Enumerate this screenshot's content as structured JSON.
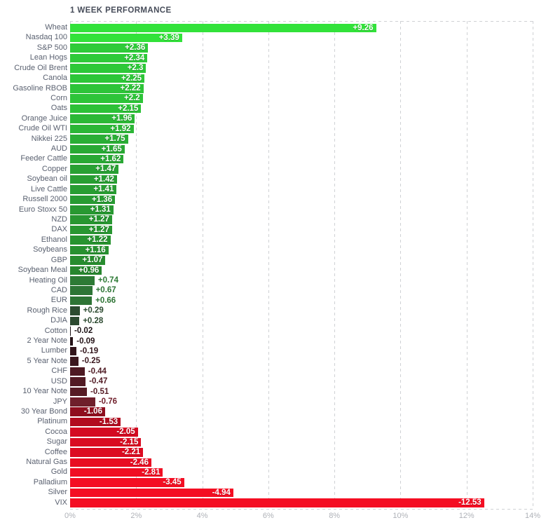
{
  "title": "1 WEEK PERFORMANCE",
  "chart_data": {
    "type": "bar",
    "orientation": "horizontal",
    "title": "1 WEEK PERFORMANCE",
    "xlabel": "",
    "ylabel": "",
    "bar_length_encodes": "absolute value of weekly percent change",
    "legend_position": "none",
    "grid": "dashed vertical gridlines at each tick; dashed top and bottom plot borders",
    "x_axis": {
      "min": 0,
      "max": 14,
      "tick_step": 2,
      "tick_labels": [
        "0%",
        "2%",
        "4%",
        "6%",
        "8%",
        "10%",
        "12%",
        "14%"
      ]
    },
    "items": [
      {
        "label": "Wheat",
        "value": 9.26,
        "display": "+9.26"
      },
      {
        "label": "Nasdaq 100",
        "value": 3.39,
        "display": "+3.39"
      },
      {
        "label": "S&P 500",
        "value": 2.36,
        "display": "+2.36"
      },
      {
        "label": "Lean Hogs",
        "value": 2.34,
        "display": "+2.34"
      },
      {
        "label": "Crude Oil Brent",
        "value": 2.3,
        "display": "+2.3"
      },
      {
        "label": "Canola",
        "value": 2.25,
        "display": "+2.25"
      },
      {
        "label": "Gasoline RBOB",
        "value": 2.22,
        "display": "+2.22"
      },
      {
        "label": "Corn",
        "value": 2.2,
        "display": "+2.2"
      },
      {
        "label": "Oats",
        "value": 2.15,
        "display": "+2.15"
      },
      {
        "label": "Orange Juice",
        "value": 1.96,
        "display": "+1.96"
      },
      {
        "label": "Crude Oil WTI",
        "value": 1.92,
        "display": "+1.92"
      },
      {
        "label": "Nikkei 225",
        "value": 1.75,
        "display": "+1.75"
      },
      {
        "label": "AUD",
        "value": 1.65,
        "display": "+1.65"
      },
      {
        "label": "Feeder Cattle",
        "value": 1.62,
        "display": "+1.62"
      },
      {
        "label": "Copper",
        "value": 1.47,
        "display": "+1.47"
      },
      {
        "label": "Soybean oil",
        "value": 1.42,
        "display": "+1.42"
      },
      {
        "label": "Live Cattle",
        "value": 1.41,
        "display": "+1.41"
      },
      {
        "label": "Russell 2000",
        "value": 1.36,
        "display": "+1.36"
      },
      {
        "label": "Euro Stoxx 50",
        "value": 1.31,
        "display": "+1.31"
      },
      {
        "label": "NZD",
        "value": 1.27,
        "display": "+1.27"
      },
      {
        "label": "DAX",
        "value": 1.27,
        "display": "+1.27"
      },
      {
        "label": "Ethanol",
        "value": 1.22,
        "display": "+1.22"
      },
      {
        "label": "Soybeans",
        "value": 1.16,
        "display": "+1.16"
      },
      {
        "label": "GBP",
        "value": 1.07,
        "display": "+1.07"
      },
      {
        "label": "Soybean Meal",
        "value": 0.96,
        "display": "+0.96"
      },
      {
        "label": "Heating Oil",
        "value": 0.74,
        "display": "+0.74"
      },
      {
        "label": "CAD",
        "value": 0.67,
        "display": "+0.67"
      },
      {
        "label": "EUR",
        "value": 0.66,
        "display": "+0.66"
      },
      {
        "label": "Rough Rice",
        "value": 0.29,
        "display": "+0.29"
      },
      {
        "label": "DJIA",
        "value": 0.28,
        "display": "+0.28"
      },
      {
        "label": "Cotton",
        "value": -0.02,
        "display": "-0.02"
      },
      {
        "label": "2 Year Note",
        "value": -0.09,
        "display": "-0.09"
      },
      {
        "label": "Lumber",
        "value": -0.19,
        "display": "-0.19"
      },
      {
        "label": "5 Year Note",
        "value": -0.25,
        "display": "-0.25"
      },
      {
        "label": "CHF",
        "value": -0.44,
        "display": "-0.44"
      },
      {
        "label": "USD",
        "value": -0.47,
        "display": "-0.47"
      },
      {
        "label": "10 Year Note",
        "value": -0.51,
        "display": "-0.51"
      },
      {
        "label": "JPY",
        "value": -0.76,
        "display": "-0.76"
      },
      {
        "label": "30 Year Bond",
        "value": -1.06,
        "display": "-1.06"
      },
      {
        "label": "Platinum",
        "value": -1.53,
        "display": "-1.53"
      },
      {
        "label": "Cocoa",
        "value": -2.05,
        "display": "-2.05"
      },
      {
        "label": "Sugar",
        "value": -2.15,
        "display": "-2.15"
      },
      {
        "label": "Coffee",
        "value": -2.21,
        "display": "-2.21"
      },
      {
        "label": "Natural Gas",
        "value": -2.46,
        "display": "-2.46"
      },
      {
        "label": "Gold",
        "value": -2.81,
        "display": "-2.81"
      },
      {
        "label": "Palladium",
        "value": -3.45,
        "display": "-3.45"
      },
      {
        "label": "Silver",
        "value": -4.94,
        "display": "-4.94"
      },
      {
        "label": "VIX",
        "value": -12.53,
        "display": "-12.53"
      }
    ],
    "colors": {
      "positive_stops": [
        [
          0,
          "#1d251e"
        ],
        [
          0.28,
          "#2c4a30"
        ],
        [
          0.7,
          "#2e7836"
        ],
        [
          1.0,
          "#27882e"
        ],
        [
          1.5,
          "#28a233"
        ],
        [
          2.0,
          "#2bba36"
        ],
        [
          2.4,
          "#2ecd39"
        ],
        [
          3.39,
          "#32e23a"
        ]
      ],
      "negative_stops": [
        [
          0,
          "#1a1315"
        ],
        [
          0.25,
          "#3a161d"
        ],
        [
          0.51,
          "#561c25"
        ],
        [
          0.8,
          "#731f2c"
        ],
        [
          1.06,
          "#8f0e1e"
        ],
        [
          1.53,
          "#b20b1e"
        ],
        [
          2.05,
          "#d40a21"
        ],
        [
          2.5,
          "#ea0d22"
        ],
        [
          3.0,
          "#f40e23"
        ]
      ],
      "gridline": "#cfd1d4",
      "axis_tick_text": "#afb2b8",
      "asset_label_text": "#5a6170",
      "title_text": "#474d5a",
      "inside_value_text": "#ffffff",
      "background": "#ffffff"
    }
  }
}
